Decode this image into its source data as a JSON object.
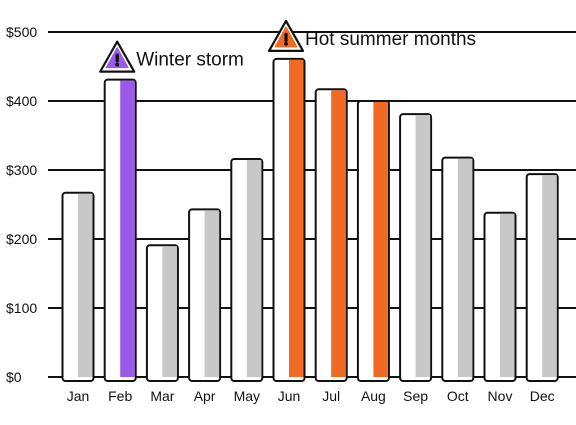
{
  "chart_data": {
    "type": "bar",
    "title": "",
    "xlabel": "",
    "ylabel": "",
    "categories": [
      "Jan",
      "Feb",
      "Mar",
      "Apr",
      "May",
      "Jun",
      "Jul",
      "Aug",
      "Sep",
      "Oct",
      "Nov",
      "Dec"
    ],
    "values": [
      267,
      431,
      191,
      243,
      316,
      461,
      417,
      400,
      381,
      318,
      238,
      294
    ],
    "ylim": [
      0,
      500
    ],
    "yticks": [
      0,
      100,
      200,
      300,
      400,
      500
    ],
    "ytick_labels": [
      "$0",
      "$100",
      "$200",
      "$300",
      "$400",
      "$500"
    ],
    "grid": true,
    "default_color": "#c8c8c8",
    "bar_colors": {
      "Feb": "#9b59e8",
      "Jun": "#f06a23",
      "Jul": "#f06a23",
      "Aug": "#f06a23"
    },
    "annotations": [
      {
        "text": "Winter storm",
        "anchor": "Feb",
        "icon": "warning-icon",
        "color": "#9b59e8"
      },
      {
        "text": "Hot summer months",
        "anchor": "Jun",
        "icon": "warning-icon",
        "color": "#f06a23"
      }
    ]
  }
}
